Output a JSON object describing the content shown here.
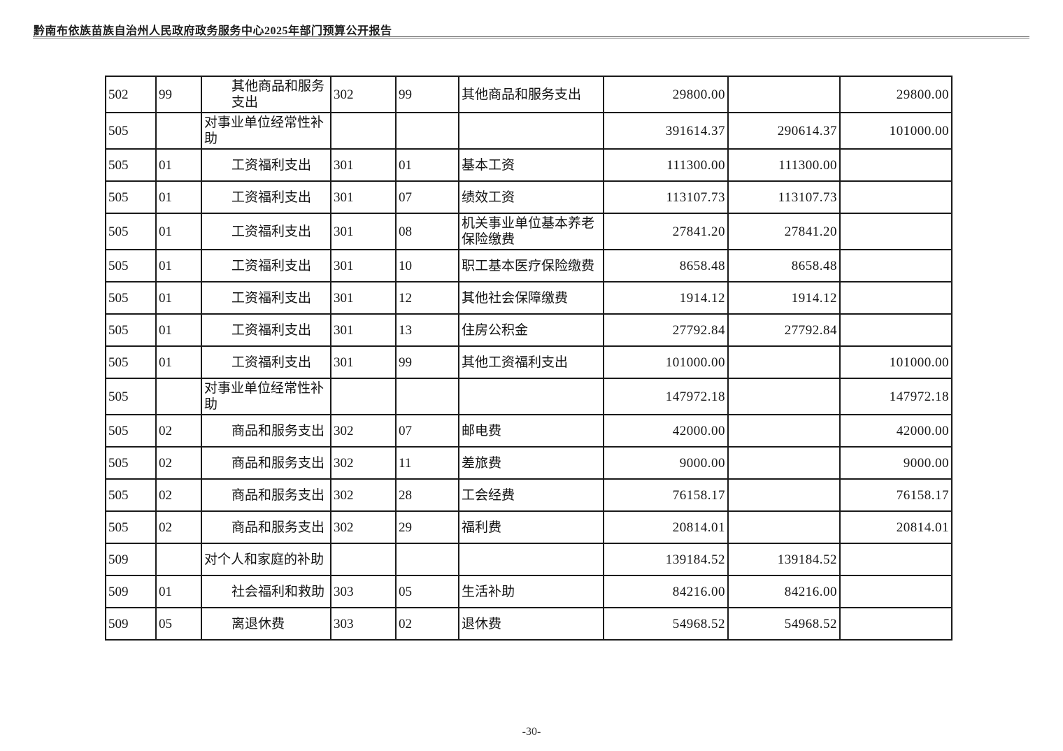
{
  "header": {
    "title": "黔南布依族苗族自治州人民政府政务服务中心2025年部门预算公开报告"
  },
  "footer": {
    "page_number": "-30-"
  },
  "table": {
    "rows": [
      {
        "code1": "502",
        "code2": "99",
        "name1": "其他商品和服务支出",
        "indent": true,
        "code3": "302",
        "code4": "99",
        "name2": "其他商品和服务支出",
        "amt1": "29800.00",
        "amt2": "",
        "amt3": "29800.00"
      },
      {
        "code1": "505",
        "code2": "",
        "name1": "对事业单位经常性补助",
        "indent": false,
        "code3": "",
        "code4": "",
        "name2": "",
        "amt1": "391614.37",
        "amt2": "290614.37",
        "amt3": "101000.00"
      },
      {
        "code1": "505",
        "code2": "01",
        "name1": "工资福利支出",
        "indent": true,
        "code3": "301",
        "code4": "01",
        "name2": "基本工资",
        "amt1": "111300.00",
        "amt2": "111300.00",
        "amt3": ""
      },
      {
        "code1": "505",
        "code2": "01",
        "name1": "工资福利支出",
        "indent": true,
        "code3": "301",
        "code4": "07",
        "name2": "绩效工资",
        "amt1": "113107.73",
        "amt2": "113107.73",
        "amt3": ""
      },
      {
        "code1": "505",
        "code2": "01",
        "name1": "工资福利支出",
        "indent": true,
        "code3": "301",
        "code4": "08",
        "name2": "机关事业单位基本养老保险缴费",
        "amt1": "27841.20",
        "amt2": "27841.20",
        "amt3": ""
      },
      {
        "code1": "505",
        "code2": "01",
        "name1": "工资福利支出",
        "indent": true,
        "code3": "301",
        "code4": "10",
        "name2": "职工基本医疗保险缴费",
        "amt1": "8658.48",
        "amt2": "8658.48",
        "amt3": ""
      },
      {
        "code1": "505",
        "code2": "01",
        "name1": "工资福利支出",
        "indent": true,
        "code3": "301",
        "code4": "12",
        "name2": "其他社会保障缴费",
        "amt1": "1914.12",
        "amt2": "1914.12",
        "amt3": ""
      },
      {
        "code1": "505",
        "code2": "01",
        "name1": "工资福利支出",
        "indent": true,
        "code3": "301",
        "code4": "13",
        "name2": "住房公积金",
        "amt1": "27792.84",
        "amt2": "27792.84",
        "amt3": ""
      },
      {
        "code1": "505",
        "code2": "01",
        "name1": "工资福利支出",
        "indent": true,
        "code3": "301",
        "code4": "99",
        "name2": "其他工资福利支出",
        "amt1": "101000.00",
        "amt2": "",
        "amt3": "101000.00"
      },
      {
        "code1": "505",
        "code2": "",
        "name1": "对事业单位经常性补助",
        "indent": false,
        "code3": "",
        "code4": "",
        "name2": "",
        "amt1": "147972.18",
        "amt2": "",
        "amt3": "147972.18"
      },
      {
        "code1": "505",
        "code2": "02",
        "name1": "商品和服务支出",
        "indent": true,
        "code3": "302",
        "code4": "07",
        "name2": "邮电费",
        "amt1": "42000.00",
        "amt2": "",
        "amt3": "42000.00"
      },
      {
        "code1": "505",
        "code2": "02",
        "name1": "商品和服务支出",
        "indent": true,
        "code3": "302",
        "code4": "11",
        "name2": "差旅费",
        "amt1": "9000.00",
        "amt2": "",
        "amt3": "9000.00"
      },
      {
        "code1": "505",
        "code2": "02",
        "name1": "商品和服务支出",
        "indent": true,
        "code3": "302",
        "code4": "28",
        "name2": "工会经费",
        "amt1": "76158.17",
        "amt2": "",
        "amt3": "76158.17"
      },
      {
        "code1": "505",
        "code2": "02",
        "name1": "商品和服务支出",
        "indent": true,
        "code3": "302",
        "code4": "29",
        "name2": "福利费",
        "amt1": "20814.01",
        "amt2": "",
        "amt3": "20814.01"
      },
      {
        "code1": "509",
        "code2": "",
        "name1": "对个人和家庭的补助",
        "indent": false,
        "code3": "",
        "code4": "",
        "name2": "",
        "amt1": "139184.52",
        "amt2": "139184.52",
        "amt3": ""
      },
      {
        "code1": "509",
        "code2": "01",
        "name1": "社会福利和救助",
        "indent": true,
        "code3": "303",
        "code4": "05",
        "name2": "生活补助",
        "amt1": "84216.00",
        "amt2": "84216.00",
        "amt3": ""
      },
      {
        "code1": "509",
        "code2": "05",
        "name1": "离退休费",
        "indent": true,
        "code3": "303",
        "code4": "02",
        "name2": "退休费",
        "amt1": "54968.52",
        "amt2": "54968.52",
        "amt3": ""
      }
    ]
  }
}
